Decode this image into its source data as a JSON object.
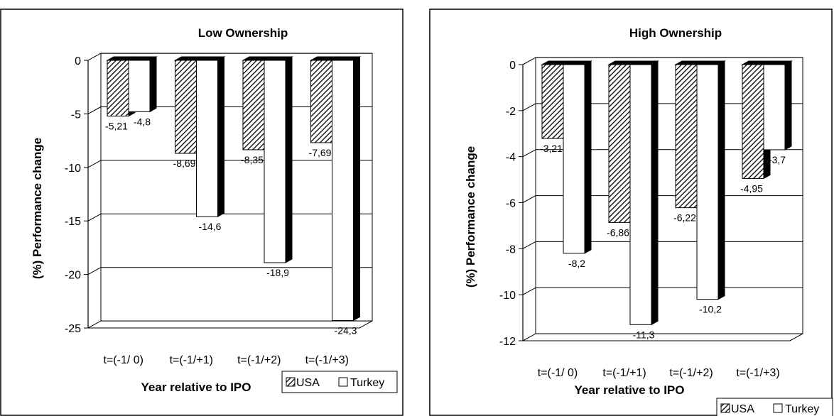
{
  "colors": {
    "usa_fill": "hatched",
    "turkey_fill": "#ffffff",
    "bar_side": "#000000"
  },
  "chart_data": [
    {
      "type": "bar",
      "title": "Low Ownership",
      "xlabel": "Year relative to IPO",
      "ylabel": "(%) Performance change",
      "categories": [
        "t=(-1/ 0)",
        "t=(-1/+1)",
        "t=(-1/+2)",
        "t=(-1/+3)"
      ],
      "ylim": [
        -25,
        0
      ],
      "yticks": [
        0,
        -5,
        -10,
        -15,
        -20,
        -25
      ],
      "grid": true,
      "legend_position": "bottom-right",
      "series": [
        {
          "name": "USA",
          "values": [
            -5.21,
            -8.69,
            -8.35,
            -7.69
          ],
          "labels": [
            "-5,21",
            "-8,69",
            "-8,35",
            "-7,69"
          ]
        },
        {
          "name": "Turkey",
          "values": [
            -4.8,
            -14.6,
            -18.9,
            -24.3
          ],
          "labels": [
            "-4,8",
            "-14,6",
            "-18,9",
            "-24,3"
          ]
        }
      ]
    },
    {
      "type": "bar",
      "title": "High Ownership",
      "xlabel": "Year relative to IPO",
      "ylabel": "(%) Performance change",
      "categories": [
        "t=(-1/ 0)",
        "t=(-1/+1)",
        "t=(-1/+2)",
        "t=(-1/+3)"
      ],
      "ylim": [
        -12,
        0
      ],
      "yticks": [
        0,
        -2,
        -4,
        -6,
        -8,
        -10,
        -12
      ],
      "grid": true,
      "legend_position": "bottom-right",
      "series": [
        {
          "name": "USA",
          "values": [
            -3.21,
            -6.86,
            -6.22,
            -4.95
          ],
          "labels": [
            "-3,21",
            "-6,86",
            "-6,22",
            "-4,95"
          ]
        },
        {
          "name": "Turkey",
          "values": [
            -8.2,
            -11.3,
            -10.2,
            -3.7
          ],
          "labels": [
            "-8,2",
            "-11,3",
            "-10,2",
            "-3,7"
          ]
        }
      ]
    }
  ]
}
